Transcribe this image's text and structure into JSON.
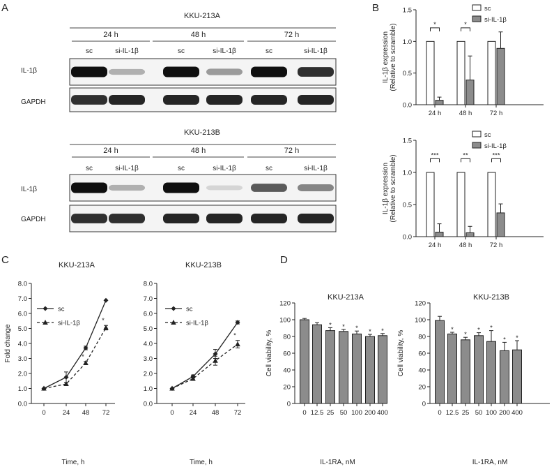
{
  "panel_letters": {
    "a": "A",
    "b": "B",
    "c": "C",
    "d": "D"
  },
  "blots": [
    {
      "cell_line": "KKU-213A",
      "timepoints": [
        "24 h",
        "48 h",
        "72 h"
      ],
      "lanes": [
        "sc",
        "si-IL-1β",
        "sc",
        "si-IL-1β",
        "sc",
        "si-IL-1β"
      ],
      "rows": [
        {
          "label": "IL-1β",
          "intensity": [
            1.0,
            0.25,
            1.0,
            0.35,
            1.0,
            0.85
          ]
        },
        {
          "label": "GAPDH",
          "intensity": [
            0.85,
            0.9,
            0.9,
            0.9,
            0.9,
            0.9
          ]
        }
      ]
    },
    {
      "cell_line": "KKU-213B",
      "timepoints": [
        "24 h",
        "48 h",
        "72 h"
      ],
      "lanes": [
        "sc",
        "si-IL-1β",
        "sc",
        "si-IL-1β",
        "sc",
        "si-IL-1β"
      ],
      "rows": [
        {
          "label": "IL-1β",
          "intensity": [
            1.0,
            0.25,
            1.0,
            0.08,
            0.65,
            0.45
          ]
        },
        {
          "label": "GAPDH",
          "intensity": [
            0.85,
            0.85,
            0.9,
            0.9,
            0.9,
            0.9
          ]
        }
      ]
    }
  ],
  "chart_data": [
    {
      "id": "B-top",
      "type": "bar",
      "categories": [
        "24 h",
        "48 h",
        "72 h"
      ],
      "series": [
        {
          "name": "sc",
          "values": [
            1.0,
            1.0,
            1.0
          ],
          "errors": [
            0,
            0,
            0
          ],
          "color": "#ffffff"
        },
        {
          "name": "si-IL-1β",
          "values": [
            0.07,
            0.39,
            0.89
          ],
          "errors": [
            0.05,
            0.38,
            0.26
          ],
          "color": "#8c8c8c"
        }
      ],
      "significance": [
        "*",
        "*",
        ""
      ],
      "ylabel": "IL-1β expression",
      "ylabel2": "(Relative to scramble)",
      "ylim": [
        0,
        1.5
      ],
      "yticks": [
        "0.0",
        "0.5",
        "1.0",
        "1.5"
      ]
    },
    {
      "id": "B-bottom",
      "type": "bar",
      "categories": [
        "24 h",
        "48 h",
        "72 h"
      ],
      "series": [
        {
          "name": "sc",
          "values": [
            1.0,
            1.0,
            1.0
          ],
          "errors": [
            0,
            0,
            0
          ],
          "color": "#ffffff"
        },
        {
          "name": "si-IL-1β",
          "values": [
            0.07,
            0.06,
            0.37
          ],
          "errors": [
            0.13,
            0.1,
            0.14
          ],
          "color": "#8c8c8c"
        }
      ],
      "significance": [
        "***",
        "**",
        "***"
      ],
      "ylabel": "IL-1β expression",
      "ylabel2": "(Relative to scramble)",
      "ylim": [
        0,
        1.5
      ],
      "yticks": [
        "0.0",
        "0.5",
        "1.0",
        "1.5"
      ]
    },
    {
      "id": "C-left",
      "type": "line",
      "title": "KKU-213A",
      "x": [
        0,
        24,
        48,
        72
      ],
      "xticks": [
        "0",
        "24",
        "48",
        "72"
      ],
      "series": [
        {
          "name": "sc",
          "values": [
            1.0,
            1.75,
            3.7,
            6.87
          ],
          "errors": [
            0.05,
            0.35,
            0.12,
            0.05
          ],
          "marker": "diamond",
          "dash": false
        },
        {
          "name": "si-IL-1β",
          "values": [
            1.0,
            1.3,
            2.7,
            5.05
          ],
          "errors": [
            0.05,
            0.1,
            0.1,
            0.15
          ],
          "marker": "triangle",
          "dash": true
        }
      ],
      "significance": [
        "",
        "",
        "*",
        "*"
      ],
      "xlabel": "Time, h",
      "ylabel": "Fold change",
      "ylim": [
        0,
        8
      ],
      "yticks": [
        "0.0",
        "1.0",
        "2.0",
        "3.0",
        "4.0",
        "5.0",
        "6.0",
        "7.0",
        "8.0"
      ]
    },
    {
      "id": "C-right",
      "type": "line",
      "title": "KKU-213B",
      "x": [
        0,
        24,
        48,
        72
      ],
      "xticks": [
        "0",
        "24",
        "48",
        "72"
      ],
      "series": [
        {
          "name": "sc",
          "values": [
            1.0,
            1.8,
            3.3,
            5.4
          ],
          "errors": [
            0.05,
            0.1,
            0.3,
            0.1
          ],
          "marker": "diamond",
          "dash": false
        },
        {
          "name": "si-IL-1β",
          "values": [
            1.0,
            1.65,
            2.85,
            3.95
          ],
          "errors": [
            0.05,
            0.1,
            0.3,
            0.25
          ],
          "marker": "triangle",
          "dash": true
        }
      ],
      "significance": [
        "",
        "",
        "",
        "*"
      ],
      "xlabel": "Time, h",
      "ylabel": "",
      "ylim": [
        0,
        8
      ],
      "yticks": [
        "0.0",
        "1.0",
        "2.0",
        "3.0",
        "4.0",
        "5.0",
        "6.0",
        "7.0",
        "8.0"
      ]
    },
    {
      "id": "D-left",
      "type": "bar",
      "title": "KKU-213A",
      "categories": [
        "0",
        "12.5",
        "25",
        "50",
        "100",
        "200",
        "400"
      ],
      "values": [
        100,
        94,
        87,
        86,
        83,
        80,
        81
      ],
      "errors": [
        1.5,
        2.5,
        3.5,
        2.5,
        3.5,
        2.5,
        2.5
      ],
      "significance": [
        "",
        "",
        "*",
        "*",
        "*",
        "*",
        "*"
      ],
      "color": "#8c8c8c",
      "xlabel": "IL-1RA, nM",
      "ylabel": "Cell viability, %",
      "ylim": [
        0,
        120
      ],
      "yticks": [
        "0",
        "20",
        "40",
        "60",
        "80",
        "100",
        "120"
      ]
    },
    {
      "id": "D-right",
      "type": "bar",
      "title": "KKU-213B",
      "categories": [
        "0",
        "12.5",
        "25",
        "50",
        "100",
        "200",
        "400"
      ],
      "values": [
        99,
        83,
        76,
        81,
        74,
        63,
        64
      ],
      "errors": [
        5,
        2,
        3,
        3.5,
        13,
        10,
        11
      ],
      "significance": [
        "",
        "*",
        "*",
        "*",
        "*",
        "*",
        "*"
      ],
      "color": "#8c8c8c",
      "xlabel": "IL-1RA, nM",
      "ylabel": "Cell viability, %",
      "ylim": [
        0,
        120
      ],
      "yticks": [
        "0",
        "20",
        "40",
        "60",
        "80",
        "100",
        "120"
      ]
    }
  ]
}
